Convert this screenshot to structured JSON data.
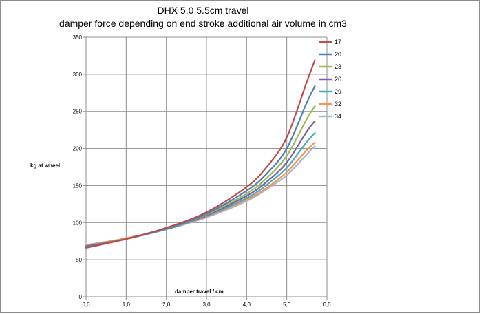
{
  "chart_data": {
    "type": "line",
    "title": "DHX 5.0 5.5cm travel",
    "subtitle": "damper force depending on end stroke additional air volume in cm3",
    "xlabel": "damper travel / cm",
    "ylabel": "kg at wheel",
    "xlim": [
      0,
      6
    ],
    "ylim": [
      0,
      350
    ],
    "xticks": [
      "0,0",
      "1,0",
      "2,0",
      "3,0",
      "4,0",
      "5,0",
      "6,0"
    ],
    "yticks": [
      "0",
      "50",
      "100",
      "150",
      "200",
      "250",
      "300",
      "350"
    ],
    "grid": true,
    "legend_position": "right",
    "x": [
      0,
      1,
      2,
      3,
      4,
      4.5,
      5,
      5.5,
      5.7
    ],
    "series": [
      {
        "name": "17",
        "color": "#be4b48",
        "values": [
          66,
          78,
          93,
          114,
          148,
          175,
          215,
          290,
          319
        ]
      },
      {
        "name": "20",
        "color": "#4a7ebb",
        "values": [
          67,
          78,
          92,
          112,
          143,
          166,
          200,
          262,
          284
        ]
      },
      {
        "name": "23",
        "color": "#98b954",
        "values": [
          67,
          78,
          92,
          111,
          139,
          160,
          190,
          240,
          257
        ]
      },
      {
        "name": "26",
        "color": "#7d60a0",
        "values": [
          68,
          78,
          92,
          110,
          136,
          155,
          181,
          223,
          237
        ]
      },
      {
        "name": "29",
        "color": "#46aac5",
        "values": [
          68,
          78,
          91,
          109,
          133,
          151,
          174,
          209,
          221
        ]
      },
      {
        "name": "32",
        "color": "#f69545",
        "values": [
          69,
          79,
          91,
          108,
          131,
          147,
          168,
          198,
          208
        ]
      },
      {
        "name": "34",
        "color": "#a5b6d6",
        "values": [
          70,
          79,
          91,
          107,
          129,
          145,
          164,
          192,
          203
        ]
      }
    ]
  }
}
